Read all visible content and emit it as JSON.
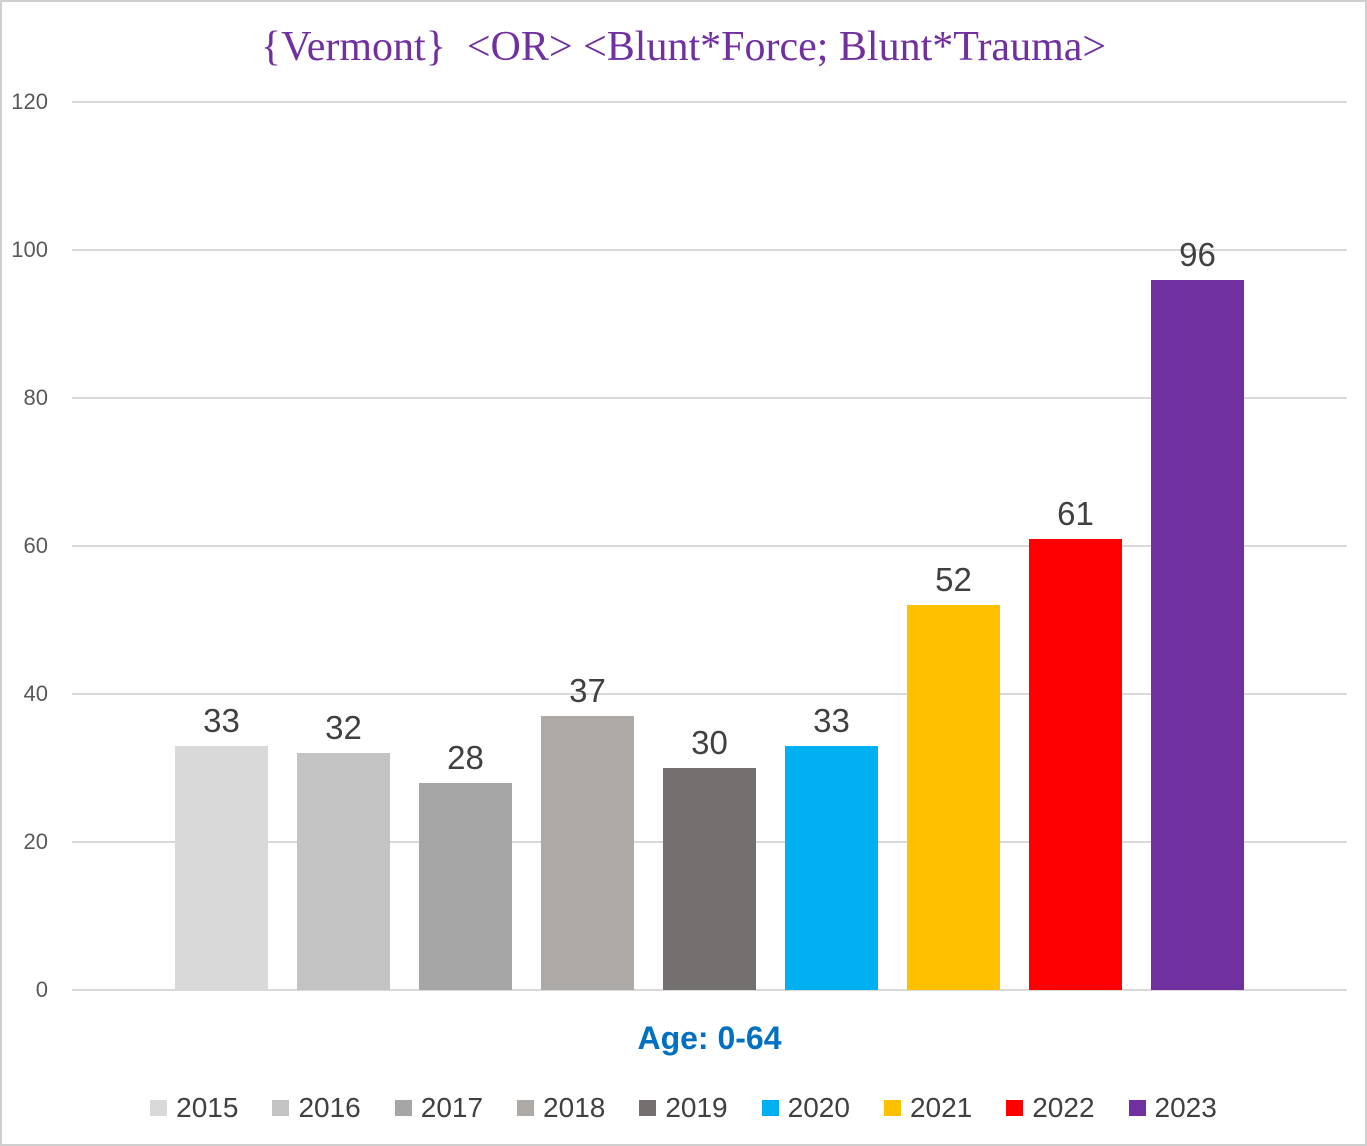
{
  "chart_data": {
    "type": "bar",
    "title": "{Vermont}  <OR> <Blunt*Force; Blunt*Trauma>",
    "title_color": "#7030A0",
    "categories": [
      "2015",
      "2016",
      "2017",
      "2018",
      "2019",
      "2020",
      "2021",
      "2022",
      "2023"
    ],
    "values": [
      33,
      32,
      28,
      37,
      30,
      33,
      52,
      61,
      96
    ],
    "bar_colors": [
      "#D9D9D9",
      "#C3C3C3",
      "#A6A6A6",
      "#ACA9A7",
      "#757070",
      "#00B0F0",
      "#FFC000",
      "#FF0000",
      "#7030A0"
    ],
    "xlabel": "Age: 0-64",
    "xlabel_color": "#0070C0",
    "ylabel": "",
    "ylim": [
      0,
      120
    ],
    "yticks": [
      0,
      20,
      40,
      60,
      80,
      100,
      120
    ],
    "grid": true,
    "gridline_color": "#D9D9D9",
    "tick_label_color": "#595959",
    "data_label_color": "#404040",
    "legend_text_color": "#404040",
    "legend_position": "bottom"
  }
}
